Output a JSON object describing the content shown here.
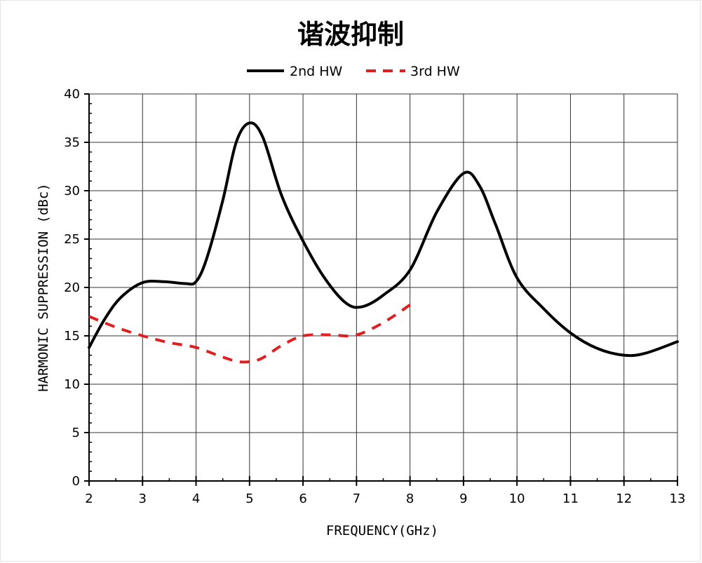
{
  "chart_data": {
    "type": "line",
    "title": "谐波抑制",
    "xlabel": "FREQUENCY(GHz)",
    "ylabel": "HARMONIC SUPPRESSION (dBc)",
    "xlim": [
      2,
      13
    ],
    "ylim": [
      0,
      40
    ],
    "x_ticks": [
      2,
      3,
      4,
      5,
      6,
      7,
      8,
      9,
      10,
      11,
      12,
      13
    ],
    "y_ticks": [
      0,
      5,
      10,
      15,
      20,
      25,
      30,
      35,
      40
    ],
    "grid": true,
    "legend_position": "top",
    "series": [
      {
        "name": "2nd HW",
        "color": "#000000",
        "style": "solid",
        "points": [
          [
            2.0,
            13.8
          ],
          [
            2.3,
            16.8
          ],
          [
            2.6,
            19.0
          ],
          [
            3.0,
            20.5
          ],
          [
            3.4,
            20.6
          ],
          [
            3.8,
            20.4
          ],
          [
            4.0,
            20.6
          ],
          [
            4.2,
            23.0
          ],
          [
            4.5,
            29.0
          ],
          [
            4.75,
            35.0
          ],
          [
            5.0,
            37.0
          ],
          [
            5.25,
            35.5
          ],
          [
            5.6,
            29.5
          ],
          [
            6.0,
            24.8
          ],
          [
            6.4,
            21.0
          ],
          [
            6.8,
            18.4
          ],
          [
            7.1,
            18.0
          ],
          [
            7.5,
            19.2
          ],
          [
            8.0,
            21.8
          ],
          [
            8.5,
            27.8
          ],
          [
            9.0,
            31.8
          ],
          [
            9.3,
            30.5
          ],
          [
            9.6,
            26.5
          ],
          [
            10.0,
            21.0
          ],
          [
            10.5,
            17.8
          ],
          [
            11.0,
            15.3
          ],
          [
            11.5,
            13.7
          ],
          [
            12.0,
            13.0
          ],
          [
            12.4,
            13.2
          ],
          [
            13.0,
            14.4
          ]
        ]
      },
      {
        "name": "3rd HW",
        "color": "#e02020",
        "style": "dashed",
        "points": [
          [
            2.0,
            17.0
          ],
          [
            2.5,
            15.9
          ],
          [
            3.0,
            15.0
          ],
          [
            3.5,
            14.3
          ],
          [
            4.0,
            13.8
          ],
          [
            4.5,
            12.8
          ],
          [
            4.85,
            12.3
          ],
          [
            5.2,
            12.6
          ],
          [
            5.6,
            14.0
          ],
          [
            6.0,
            15.0
          ],
          [
            6.5,
            15.1
          ],
          [
            6.9,
            15.0
          ],
          [
            7.2,
            15.5
          ],
          [
            7.6,
            16.7
          ],
          [
            8.0,
            18.2
          ]
        ]
      }
    ]
  }
}
